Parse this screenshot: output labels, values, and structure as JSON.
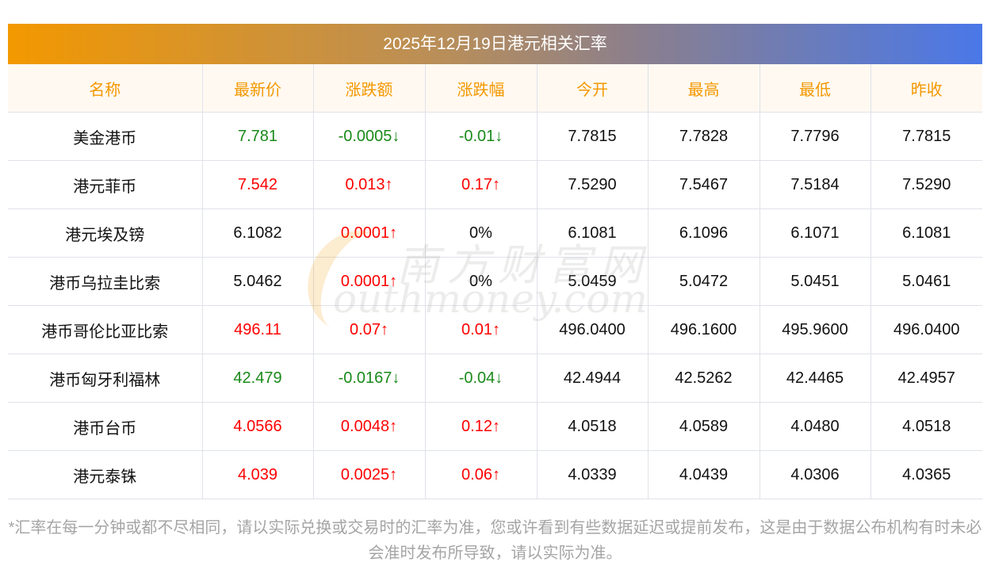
{
  "title": "2025年12月19日港元相关汇率",
  "columns": [
    "名称",
    "最新价",
    "涨跌额",
    "涨跌幅",
    "今开",
    "最高",
    "最低",
    "昨收"
  ],
  "rows": [
    {
      "name": "美金港币",
      "latest": "7.781",
      "change": "-0.0005↓",
      "pct": "-0.01↓",
      "open": "7.7815",
      "high": "7.7828",
      "low": "7.7796",
      "prev": "7.7815",
      "trend": "down",
      "pct_trend": "down"
    },
    {
      "name": "港元菲币",
      "latest": "7.542",
      "change": "0.013↑",
      "pct": "0.17↑",
      "open": "7.5290",
      "high": "7.5467",
      "low": "7.5184",
      "prev": "7.5290",
      "trend": "up",
      "pct_trend": "up"
    },
    {
      "name": "港元埃及镑",
      "latest": "6.1082",
      "change": "0.0001↑",
      "pct": "0%",
      "open": "6.1081",
      "high": "6.1096",
      "low": "6.1071",
      "prev": "6.1081",
      "trend": "flat",
      "change_trend": "up",
      "pct_trend": "flat"
    },
    {
      "name": "港币乌拉圭比索",
      "latest": "5.0462",
      "change": "0.0001↑",
      "pct": "0%",
      "open": "5.0459",
      "high": "5.0472",
      "low": "5.0451",
      "prev": "5.0461",
      "trend": "flat",
      "change_trend": "up",
      "pct_trend": "flat"
    },
    {
      "name": "港币哥伦比亚比索",
      "latest": "496.11",
      "change": "0.07↑",
      "pct": "0.01↑",
      "open": "496.0400",
      "high": "496.1600",
      "low": "495.9600",
      "prev": "496.0400",
      "trend": "up",
      "pct_trend": "up"
    },
    {
      "name": "港币匈牙利福林",
      "latest": "42.479",
      "change": "-0.0167↓",
      "pct": "-0.04↓",
      "open": "42.4944",
      "high": "42.5262",
      "low": "42.4465",
      "prev": "42.4957",
      "trend": "down",
      "pct_trend": "down"
    },
    {
      "name": "港币台币",
      "latest": "4.0566",
      "change": "0.0048↑",
      "pct": "0.12↑",
      "open": "4.0518",
      "high": "4.0589",
      "low": "4.0480",
      "prev": "4.0518",
      "trend": "up",
      "pct_trend": "up"
    },
    {
      "name": "港元泰铢",
      "latest": "4.039",
      "change": "0.0025↑",
      "pct": "0.06↑",
      "open": "4.0339",
      "high": "4.0439",
      "low": "4.0306",
      "prev": "4.0365",
      "trend": "up",
      "pct_trend": "up"
    }
  ],
  "watermark": {
    "cn": "南方财富网",
    "en": "outhmoney.com"
  },
  "note": "*汇率在每一分钟或都不尽相同，请以实际兑换或交易时的汇率为准，您或许看到有些数据延迟或提前发布，这是由于数据公布机构有时未必会准时发布所导致，请以实际为准。",
  "colors": {
    "up": "#ff0000",
    "down": "#1a8a1a",
    "header_text": "#f39800"
  }
}
